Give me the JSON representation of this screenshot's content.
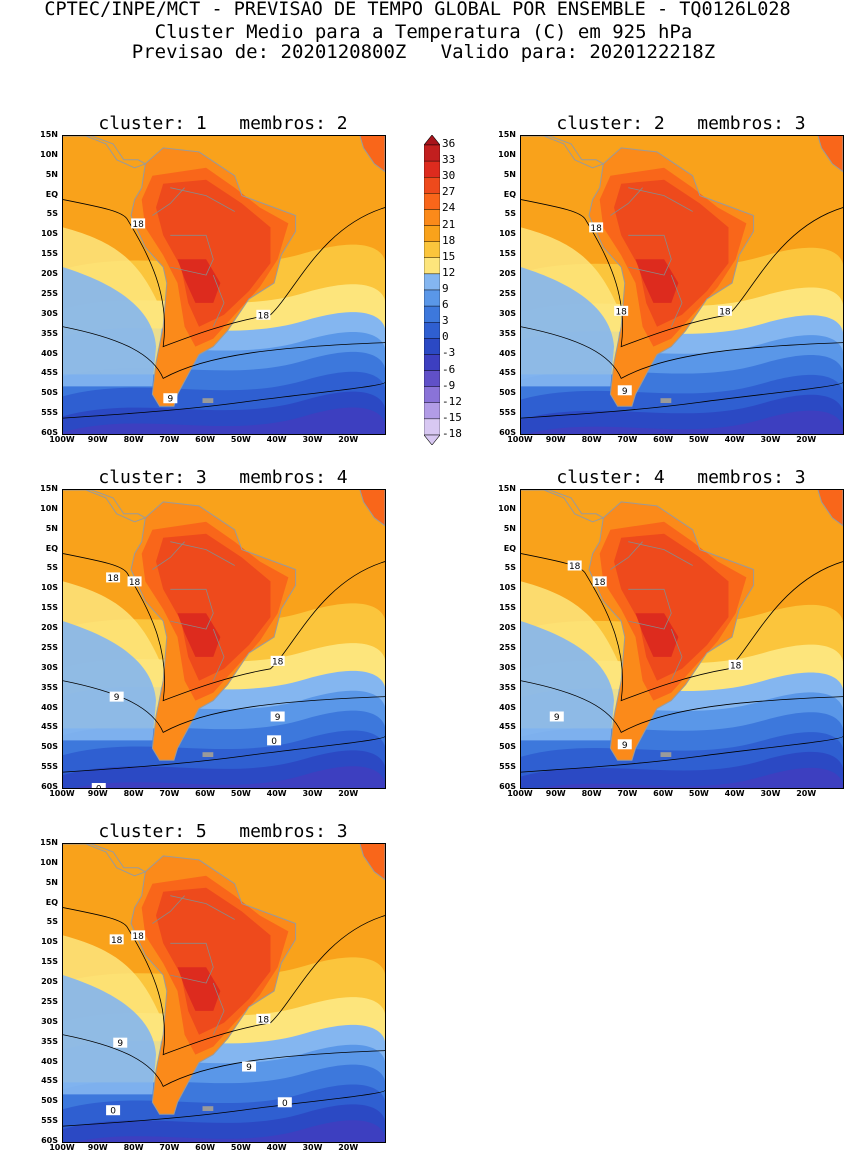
{
  "header": {
    "line1": "CPTEC/INPE/MCT - PREVISAO DE TEMPO GLOBAL POR ENSEMBLE - TQ0126L028",
    "line2": "Cluster Medio para a Temperatura (C) em 925 hPa",
    "line3": "Previsao de: 2020120800Z   Valido para: 2020122218Z"
  },
  "panels": [
    {
      "title": "cluster: 1   membros: 2",
      "contour_labels": [
        "18",
        "18",
        "9"
      ]
    },
    {
      "title": "cluster: 2   membros: 3",
      "contour_labels": [
        "18",
        "18",
        "18",
        "9"
      ]
    },
    {
      "title": "cluster: 3   membros: 4",
      "contour_labels": [
        "18",
        "18",
        "18",
        "9",
        "9",
        "0",
        "0"
      ]
    },
    {
      "title": "cluster: 4   membros: 3",
      "contour_labels": [
        "18",
        "18",
        "18",
        "9",
        "9"
      ]
    },
    {
      "title": "cluster: 5   membros: 3",
      "contour_labels": [
        "18",
        "18",
        "18",
        "9",
        "9",
        "0",
        "0"
      ]
    }
  ],
  "y_ticks": [
    "15N",
    "10N",
    "5N",
    "EQ",
    "5S",
    "10S",
    "15S",
    "20S",
    "25S",
    "30S",
    "35S",
    "40S",
    "45S",
    "50S",
    "55S",
    "60S"
  ],
  "x_ticks": [
    "100W",
    "90W",
    "80W",
    "70W",
    "60W",
    "50W",
    "40W",
    "30W",
    "20W"
  ],
  "colorbar": {
    "labels": [
      "36",
      "33",
      "30",
      "27",
      "24",
      "21",
      "18",
      "15",
      "12",
      "9",
      "6",
      "3",
      "0",
      "-3",
      "-6",
      "-9",
      "-12",
      "-15",
      "-18"
    ],
    "colors": [
      "#a8141b",
      "#c21f1f",
      "#dd2b1e",
      "#ee4a1c",
      "#f9661a",
      "#fb8a1a",
      "#f9a21b",
      "#fbc53c",
      "#fde57c",
      "#84b6f0",
      "#5a97e8",
      "#3d78dc",
      "#2f5fd1",
      "#2b49c4",
      "#3d3fc0",
      "#6050c8",
      "#8a73d8",
      "#b29ce6",
      "#d8c8f2"
    ]
  }
}
